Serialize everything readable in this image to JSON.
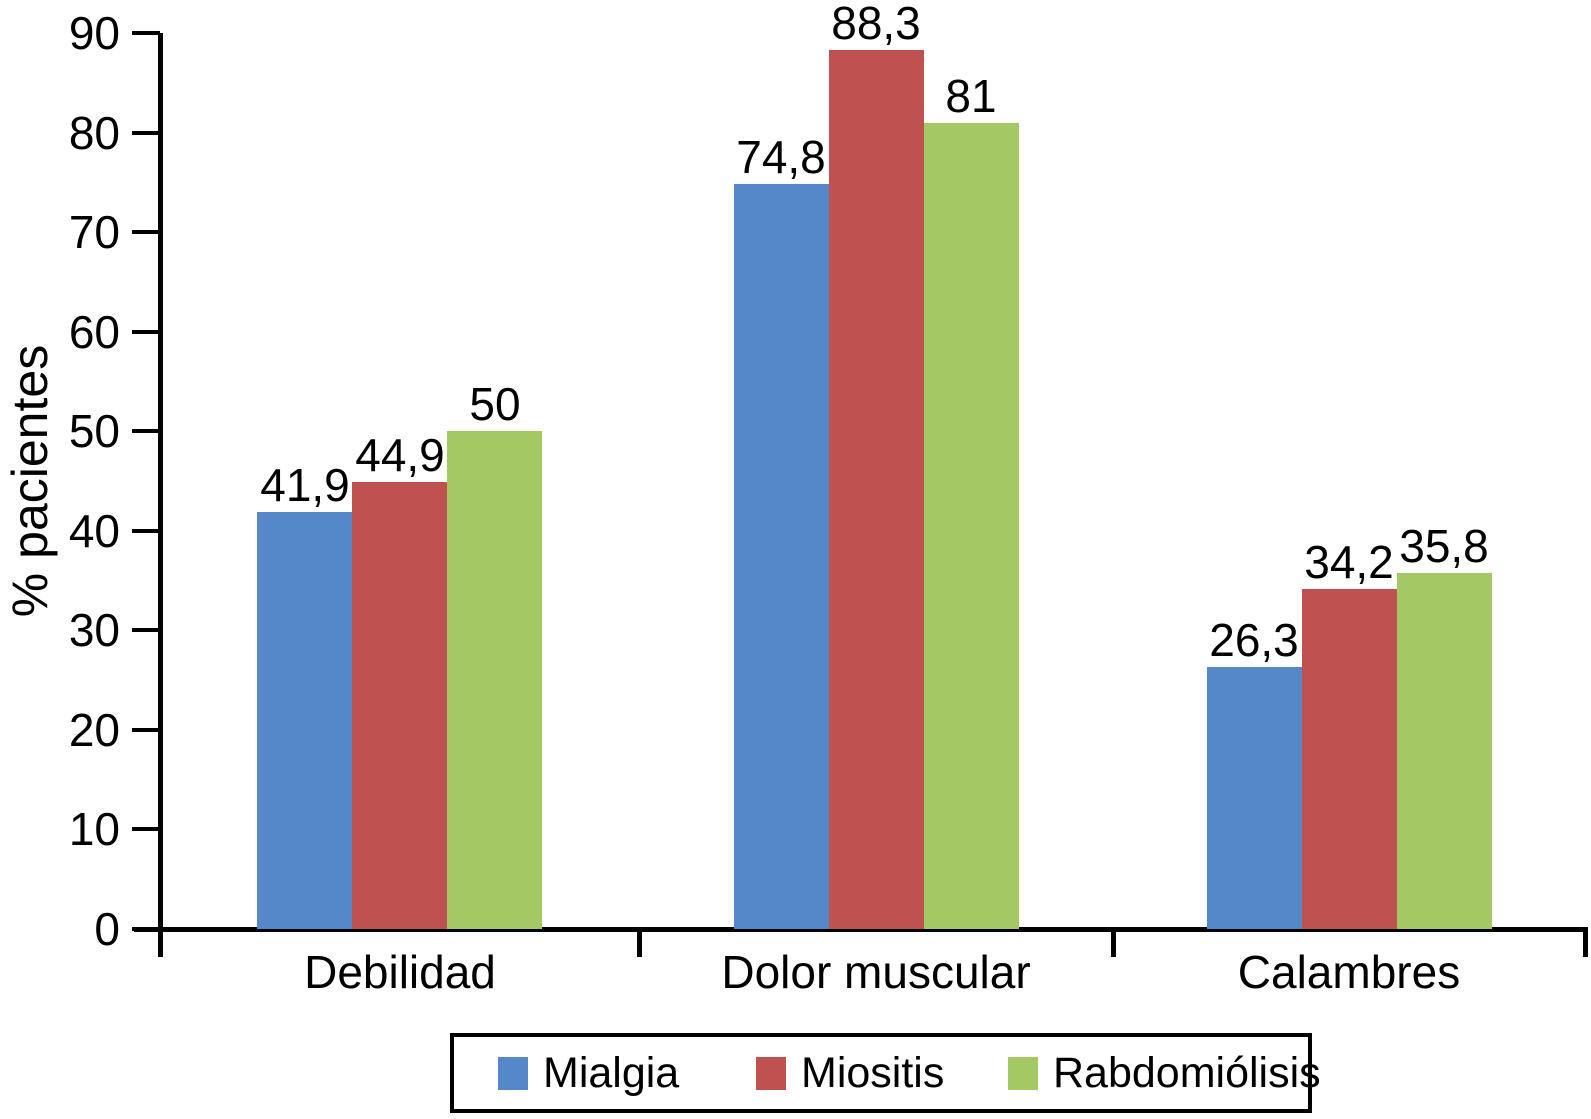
{
  "figure": {
    "background": "#ffffff",
    "axis_color": "#000000",
    "text_color": "#000000"
  },
  "chart_data": {
    "type": "bar",
    "title": "",
    "xlabel": "",
    "ylabel": "% pacientes",
    "ylim": [
      0,
      90
    ],
    "ytick_step": 10,
    "ytick_labels": [
      "0",
      "10",
      "20",
      "30",
      "40",
      "50",
      "60",
      "70",
      "80",
      "90"
    ],
    "grid": false,
    "categories": [
      "Debilidad",
      "Dolor muscular",
      "Calambres"
    ],
    "series": [
      {
        "name": "Mialgia",
        "color": "#5588C8",
        "values": [
          41.9,
          74.8,
          26.3
        ],
        "value_labels": [
          "41,9",
          "74,8",
          "26,3"
        ]
      },
      {
        "name": "Miositis",
        "color": "#BF5150",
        "values": [
          44.9,
          88.3,
          34.2
        ],
        "value_labels": [
          "44,9",
          "88,3",
          "34,2"
        ]
      },
      {
        "name": "Rabdomiólisis",
        "color": "#A4C964",
        "values": [
          50,
          81,
          35.8
        ],
        "value_labels": [
          "50",
          "81",
          "35,8"
        ]
      }
    ],
    "legend": {
      "position": "bottom",
      "entries": [
        "Mialgia",
        "Miositis",
        "Rabdomiólisis"
      ]
    }
  }
}
